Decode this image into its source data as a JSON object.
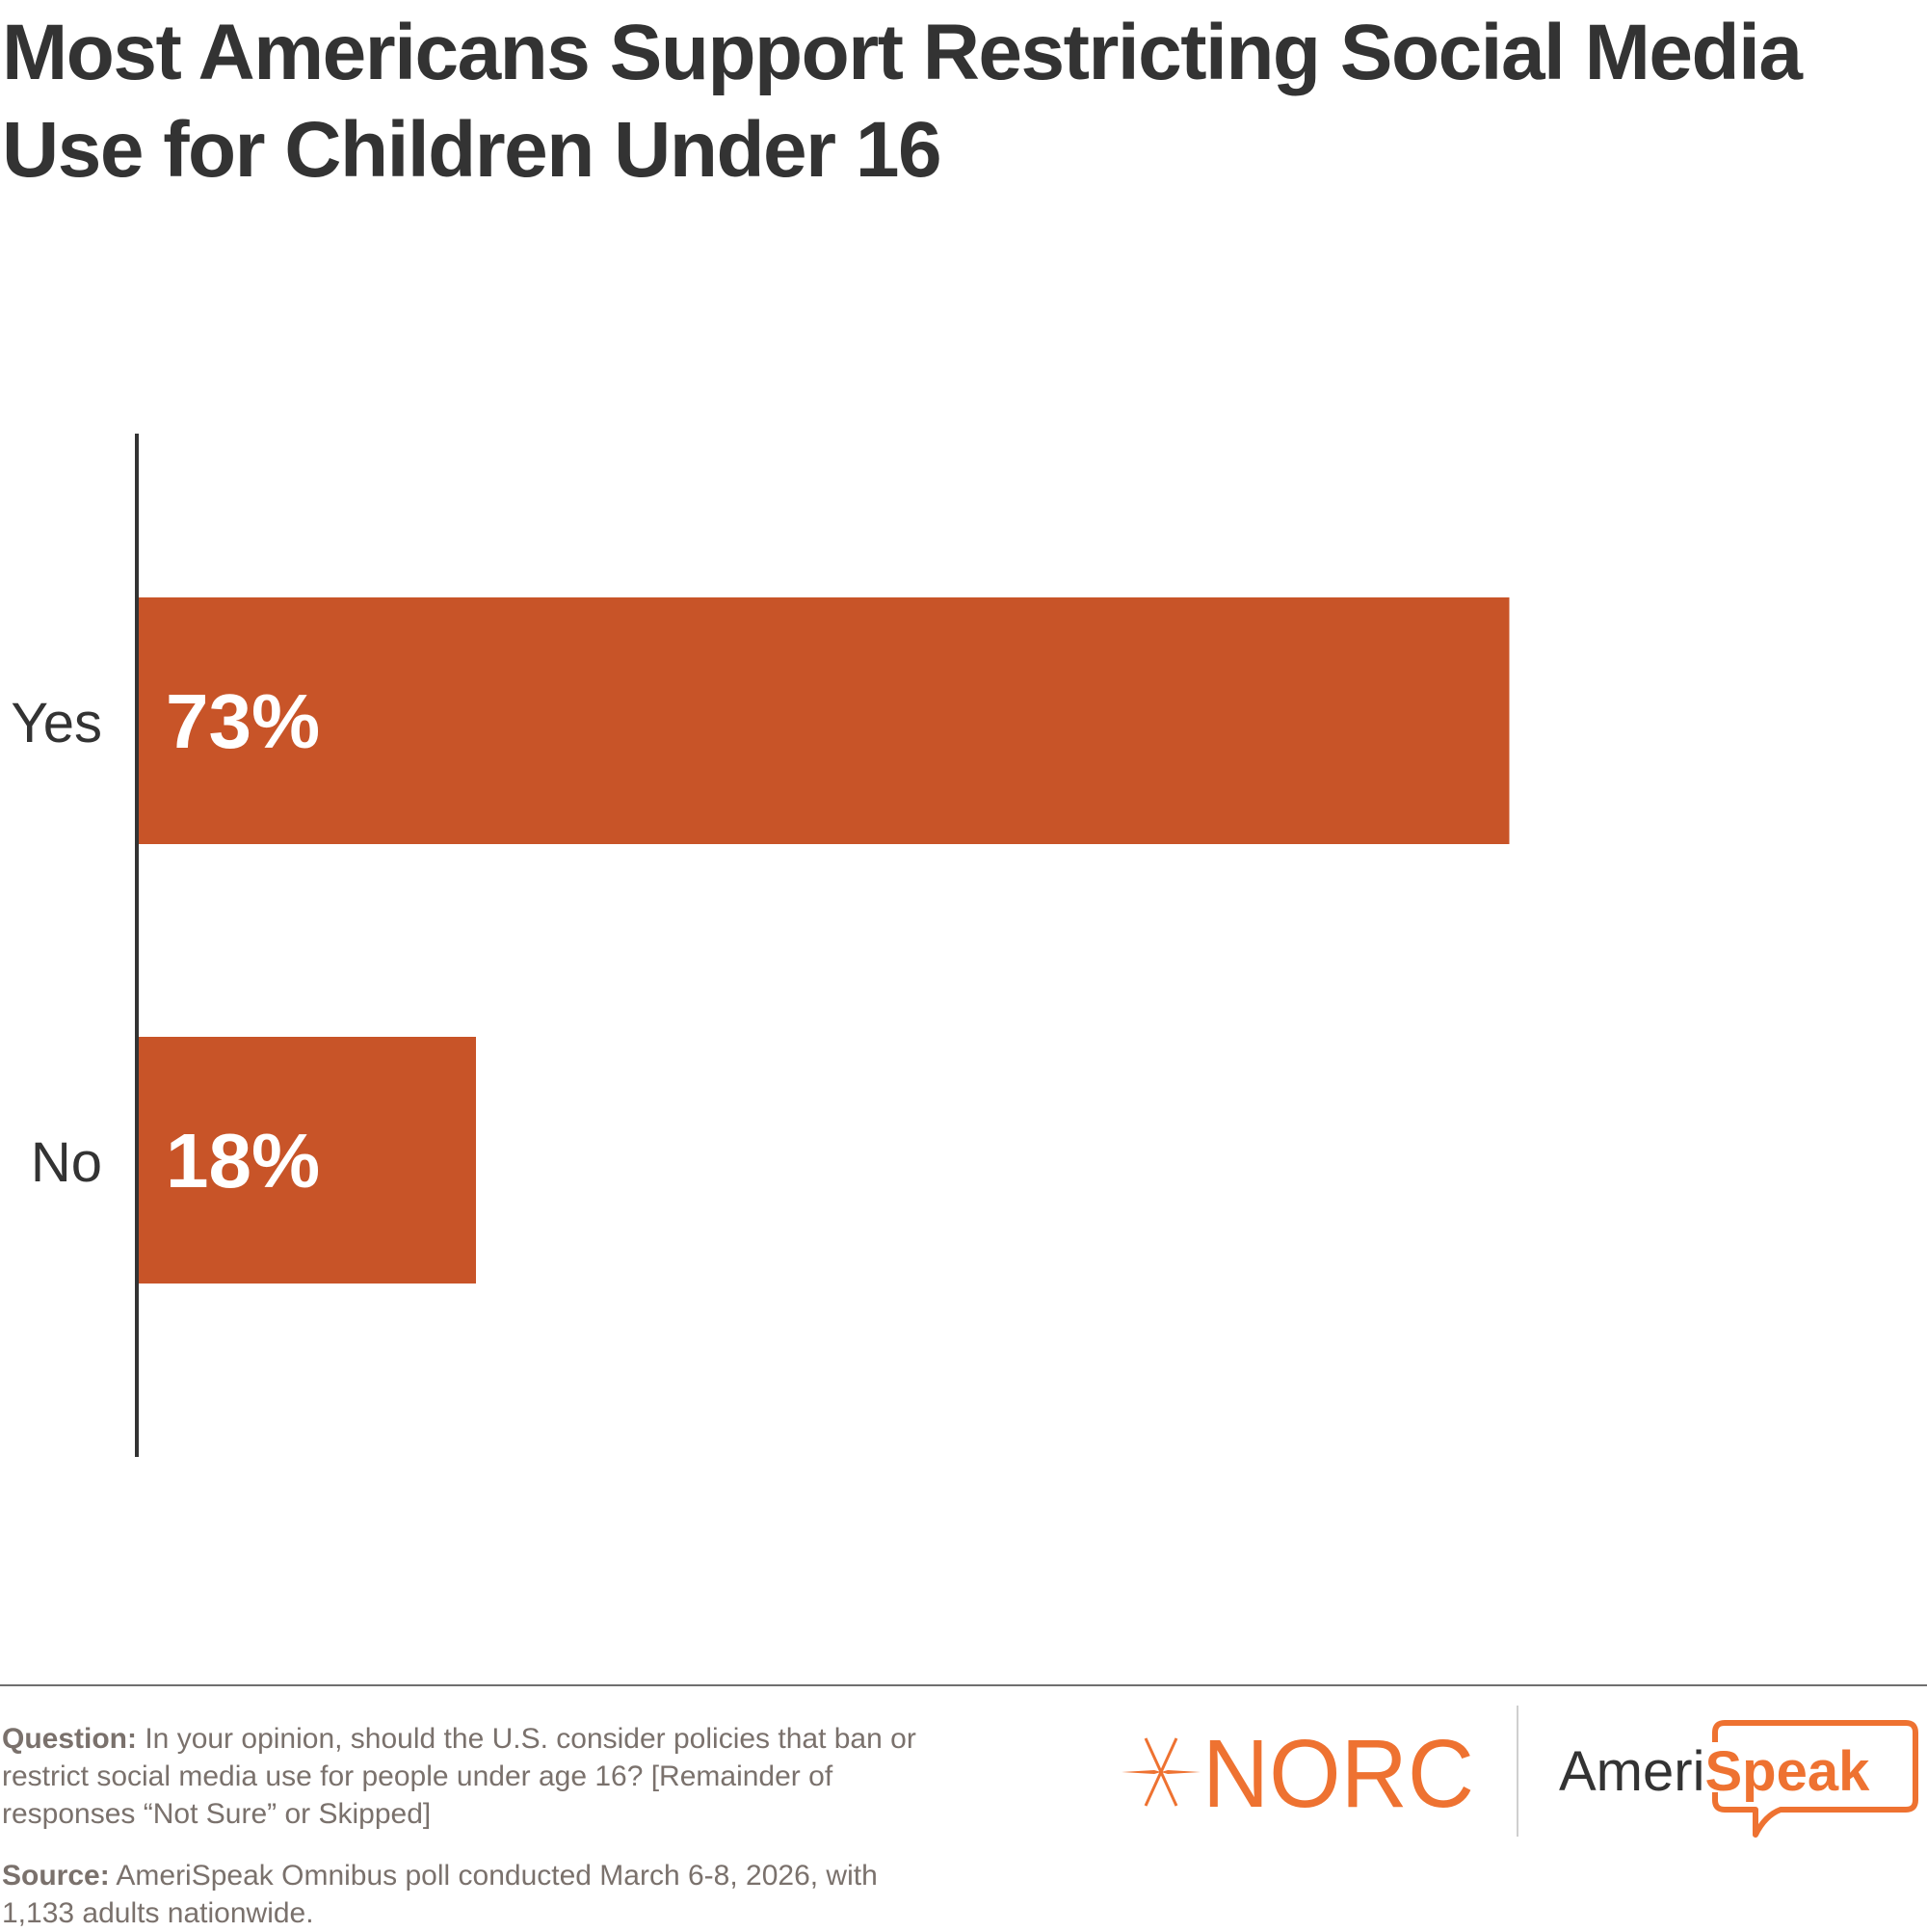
{
  "title": "Most Americans Support Restricting Social Media Use for Children Under 16",
  "colors": {
    "bar": "#C85428",
    "axis": "#333333",
    "label_text": "#333333",
    "value_text": "#FFFFFF",
    "footer_text": "#7A716C",
    "brand_orange": "#EE7231"
  },
  "chart_data": {
    "type": "bar",
    "orientation": "horizontal",
    "title": "Most Americans Support Restricting Social Media Use for Children Under 16",
    "categories": [
      "Yes",
      "No"
    ],
    "values": [
      73,
      18
    ],
    "value_labels": [
      "73%",
      "18%"
    ],
    "unit": "%",
    "xlabel": "",
    "ylabel": "",
    "xlim": [
      0,
      100
    ],
    "grid": false,
    "legend": "none"
  },
  "footer": {
    "question_label": "Question:",
    "question_text": " In your opinion, should the U.S. consider policies that ban or restrict social media use for people under age 16? [Remainder of responses “Not Sure” or Skipped]",
    "source_label": "Source:",
    "source_text": " AmeriSpeak Omnibus poll conducted March 6-8, 2026, with 1,133 adults nationwide."
  },
  "logos": {
    "norc": "NORC",
    "amerispeak_prefix": "Ameri",
    "amerispeak_suffix": "Speak"
  }
}
